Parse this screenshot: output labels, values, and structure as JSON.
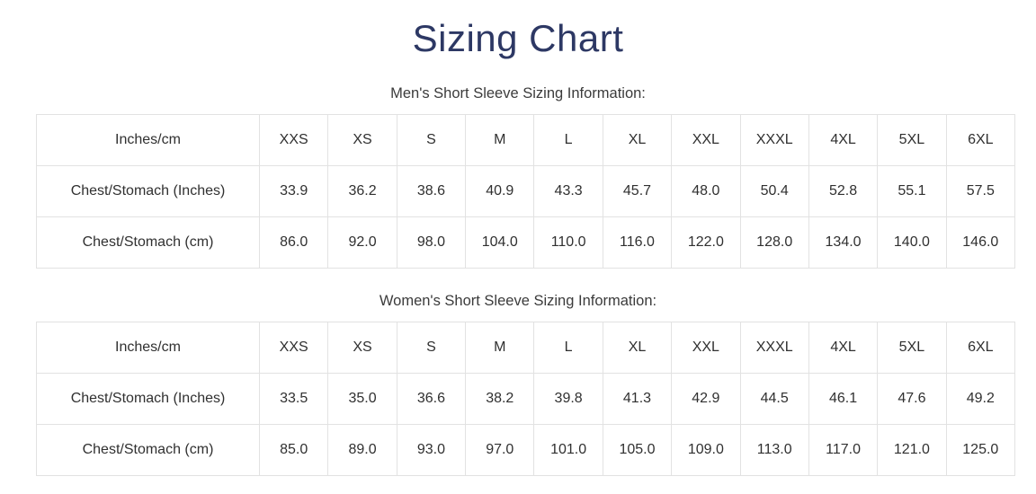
{
  "page_title": "Sizing Chart",
  "colors": {
    "title": "#2d3864",
    "heading_text": "#3b3b3b",
    "cell_text": "#303030",
    "table_border": "#e2e2e2",
    "background": "#ffffff"
  },
  "sections": [
    {
      "id": "mens",
      "heading": "Men's Short Sleeve Sizing Information:",
      "table": {
        "header": [
          "Inches/cm",
          "XXS",
          "XS",
          "S",
          "M",
          "L",
          "XL",
          "XXL",
          "XXXL",
          "4XL",
          "5XL",
          "6XL"
        ],
        "rows": [
          {
            "label": "Chest/Stomach (Inches)",
            "values": [
              "33.9",
              "36.2",
              "38.6",
              "40.9",
              "43.3",
              "45.7",
              "48.0",
              "50.4",
              "52.8",
              "55.1",
              "57.5"
            ]
          },
          {
            "label": "Chest/Stomach (cm)",
            "values": [
              "86.0",
              "92.0",
              "98.0",
              "104.0",
              "110.0",
              "116.0",
              "122.0",
              "128.0",
              "134.0",
              "140.0",
              "146.0"
            ]
          }
        ]
      }
    },
    {
      "id": "womens",
      "heading": "Women's Short Sleeve Sizing Information:",
      "table": {
        "header": [
          "Inches/cm",
          "XXS",
          "XS",
          "S",
          "M",
          "L",
          "XL",
          "XXL",
          "XXXL",
          "4XL",
          "5XL",
          "6XL"
        ],
        "rows": [
          {
            "label": "Chest/Stomach (Inches)",
            "values": [
              "33.5",
              "35.0",
              "36.6",
              "38.2",
              "39.8",
              "41.3",
              "42.9",
              "44.5",
              "46.1",
              "47.6",
              "49.2"
            ]
          },
          {
            "label": "Chest/Stomach (cm)",
            "values": [
              "85.0",
              "89.0",
              "93.0",
              "97.0",
              "101.0",
              "105.0",
              "109.0",
              "113.0",
              "117.0",
              "121.0",
              "125.0"
            ]
          }
        ]
      }
    }
  ]
}
